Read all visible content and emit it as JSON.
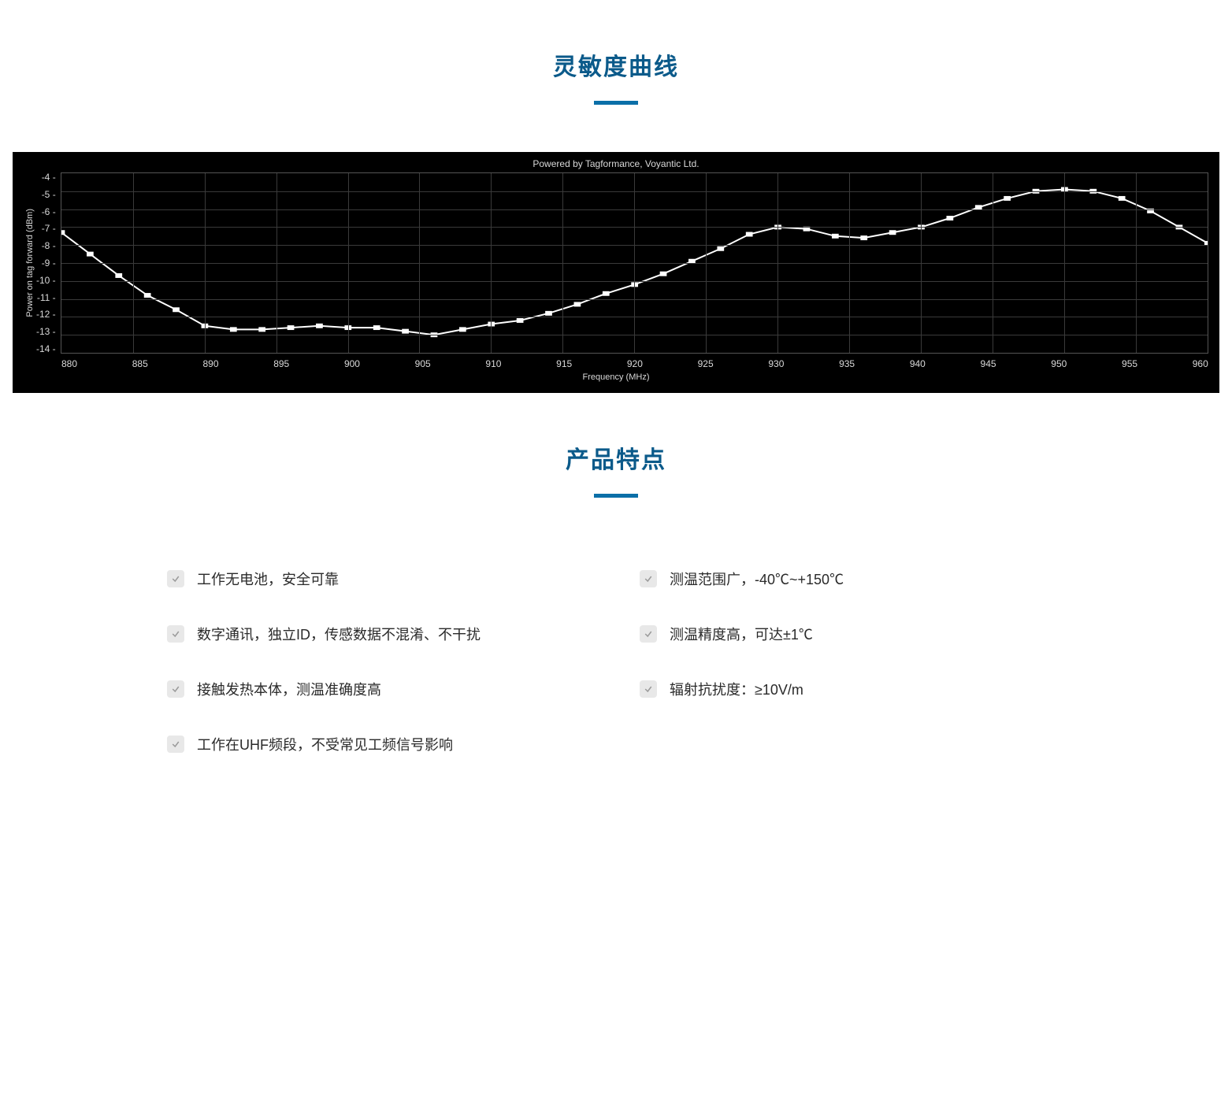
{
  "sections": {
    "curve_title": "灵敏度曲线",
    "features_title": "产品特点"
  },
  "chart": {
    "type": "line",
    "caption": "Powered by Tagformance, Voyantic Ltd.",
    "x_axis_title": "Frequency (MHz)",
    "y_axis_title": "Power on tag forward (dBm)",
    "xlim": [
      880,
      960
    ],
    "ylim": [
      -14,
      -4
    ],
    "xtick_step": 5,
    "ytick_step": 1,
    "xticks": [
      880,
      885,
      890,
      895,
      900,
      905,
      910,
      915,
      920,
      925,
      930,
      935,
      940,
      945,
      950,
      955,
      960
    ],
    "yticks": [
      -4,
      -5,
      -6,
      -7,
      -8,
      -9,
      -10,
      -11,
      -12,
      -13,
      -14
    ],
    "background_color": "#000000",
    "grid_color": "#3a3a3a",
    "text_color": "#d9d9d9",
    "line_color": "#ffffff",
    "line_width": 2,
    "marker": "square",
    "marker_size": 6,
    "marker_fill": "#ffffff",
    "data": [
      {
        "x": 880,
        "y": -7.3
      },
      {
        "x": 882,
        "y": -8.5
      },
      {
        "x": 884,
        "y": -9.7
      },
      {
        "x": 886,
        "y": -10.8
      },
      {
        "x": 888,
        "y": -11.6
      },
      {
        "x": 890,
        "y": -12.5
      },
      {
        "x": 892,
        "y": -12.7
      },
      {
        "x": 894,
        "y": -12.7
      },
      {
        "x": 896,
        "y": -12.6
      },
      {
        "x": 898,
        "y": -12.5
      },
      {
        "x": 900,
        "y": -12.6
      },
      {
        "x": 902,
        "y": -12.6
      },
      {
        "x": 904,
        "y": -12.8
      },
      {
        "x": 906,
        "y": -13.0
      },
      {
        "x": 908,
        "y": -12.7
      },
      {
        "x": 910,
        "y": -12.4
      },
      {
        "x": 912,
        "y": -12.2
      },
      {
        "x": 914,
        "y": -11.8
      },
      {
        "x": 916,
        "y": -11.3
      },
      {
        "x": 918,
        "y": -10.7
      },
      {
        "x": 920,
        "y": -10.2
      },
      {
        "x": 922,
        "y": -9.6
      },
      {
        "x": 924,
        "y": -8.9
      },
      {
        "x": 926,
        "y": -8.2
      },
      {
        "x": 928,
        "y": -7.4
      },
      {
        "x": 930,
        "y": -7.0
      },
      {
        "x": 932,
        "y": -7.1
      },
      {
        "x": 934,
        "y": -7.5
      },
      {
        "x": 936,
        "y": -7.6
      },
      {
        "x": 938,
        "y": -7.3
      },
      {
        "x": 940,
        "y": -7.0
      },
      {
        "x": 942,
        "y": -6.5
      },
      {
        "x": 944,
        "y": -5.9
      },
      {
        "x": 946,
        "y": -5.4
      },
      {
        "x": 948,
        "y": -5.0
      },
      {
        "x": 950,
        "y": -4.9
      },
      {
        "x": 952,
        "y": -5.0
      },
      {
        "x": 954,
        "y": -5.4
      },
      {
        "x": 956,
        "y": -6.1
      },
      {
        "x": 958,
        "y": -7.0
      },
      {
        "x": 960,
        "y": -7.9
      }
    ]
  },
  "features": {
    "left": [
      "工作无电池，安全可靠",
      "数字通讯，独立ID，传感数据不混淆、不干扰",
      "接触发热本体，测温准确度高",
      "工作在UHF频段，不受常见工频信号影响"
    ],
    "right": [
      "测温范围广，-40℃~+150℃",
      "测温精度高，可达±1℃",
      "辐射抗扰度：≥10V/m"
    ]
  },
  "accent_color": "#0b5a8a",
  "underline_color": "#0b6fa8",
  "check_badge_bg": "#e8e8e8",
  "check_stroke": "#9a9a9a"
}
